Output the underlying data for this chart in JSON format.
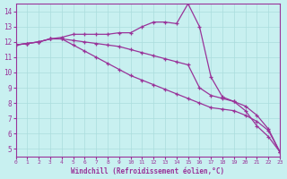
{
  "xlabel": "Windchill (Refroidissement éolien,°C)",
  "background_color": "#c8f0f0",
  "line_color": "#993399",
  "grid_color": "#aadddd",
  "xlim": [
    0,
    23
  ],
  "ylim": [
    4.5,
    14.5
  ],
  "yticks": [
    5,
    6,
    7,
    8,
    9,
    10,
    11,
    12,
    13,
    14
  ],
  "xticks": [
    0,
    1,
    2,
    3,
    4,
    5,
    6,
    7,
    8,
    9,
    10,
    11,
    12,
    13,
    14,
    15,
    16,
    17,
    18,
    19,
    20,
    21,
    22,
    23
  ],
  "series1": {
    "x": [
      0,
      1,
      2,
      3,
      4,
      5,
      6,
      7,
      8,
      9,
      10,
      11,
      12,
      13,
      14,
      15,
      16,
      17,
      18,
      19,
      20,
      21,
      22,
      23
    ],
    "y": [
      11.8,
      11.9,
      12.0,
      12.2,
      12.3,
      12.5,
      12.5,
      12.5,
      12.5,
      12.6,
      12.6,
      13.0,
      13.3,
      13.3,
      13.2,
      14.5,
      13.0,
      9.7,
      8.4,
      8.1,
      7.5,
      6.5,
      5.8,
      4.8
    ]
  },
  "series2": {
    "x": [
      0,
      1,
      2,
      3,
      4,
      5,
      6,
      7,
      8,
      9,
      10,
      11,
      12,
      13,
      14,
      15,
      16,
      17,
      18,
      19,
      20,
      21,
      22,
      23
    ],
    "y": [
      11.8,
      11.9,
      12.0,
      12.2,
      12.2,
      12.1,
      12.0,
      11.9,
      11.8,
      11.7,
      11.5,
      11.3,
      11.1,
      10.9,
      10.7,
      10.5,
      9.0,
      8.5,
      8.3,
      8.1,
      7.8,
      7.2,
      6.3,
      4.8
    ]
  },
  "series3": {
    "x": [
      0,
      1,
      2,
      3,
      4,
      5,
      6,
      7,
      8,
      9,
      10,
      11,
      12,
      13,
      14,
      15,
      16,
      17,
      18,
      19,
      20,
      21,
      22,
      23
    ],
    "y": [
      11.8,
      11.9,
      12.0,
      12.2,
      12.2,
      11.8,
      11.4,
      11.0,
      10.6,
      10.2,
      9.8,
      9.5,
      9.2,
      8.9,
      8.6,
      8.3,
      8.0,
      7.7,
      7.6,
      7.5,
      7.2,
      6.8,
      6.2,
      4.8
    ]
  }
}
